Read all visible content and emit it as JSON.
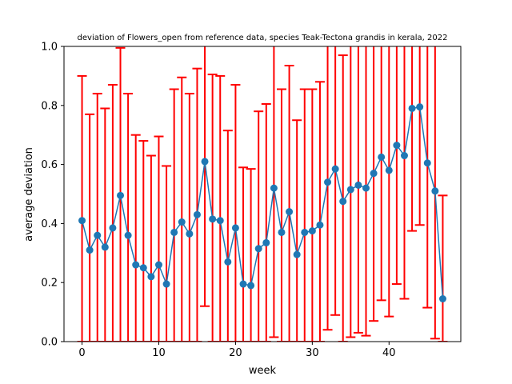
{
  "chart_data": {
    "type": "line",
    "title": "deviation of Flowers_open from reference data, species Teak-Tectona grandis in kerala, 2022",
    "xlabel": "week",
    "ylabel": "average deviation",
    "xlim": [
      -2.35,
      49.35
    ],
    "ylim": [
      0.0,
      1.0
    ],
    "xticks": [
      0,
      10,
      20,
      30,
      40
    ],
    "yticks": [
      "0.0",
      "0.2",
      "0.4",
      "0.6",
      "0.8",
      "1.0"
    ],
    "grid": false,
    "legend": "none",
    "series": [
      {
        "x": [
          0,
          1,
          2,
          3,
          4,
          5,
          6,
          7,
          8,
          9,
          10,
          11,
          12,
          13,
          14,
          15,
          16,
          17,
          18,
          19,
          20,
          21,
          22,
          23,
          24,
          25,
          26,
          27,
          28,
          29,
          30,
          31,
          32,
          33,
          34,
          35,
          36,
          37,
          38,
          39,
          40,
          41,
          42,
          43,
          44,
          45,
          46,
          47
        ],
        "y": [
          0.41,
          0.31,
          0.36,
          0.32,
          0.385,
          0.495,
          0.36,
          0.26,
          0.25,
          0.22,
          0.26,
          0.195,
          0.37,
          0.405,
          0.365,
          0.43,
          0.61,
          0.415,
          0.41,
          0.27,
          0.385,
          0.195,
          0.19,
          0.315,
          0.335,
          0.52,
          0.37,
          0.44,
          0.295,
          0.37,
          0.375,
          0.395,
          0.54,
          0.585,
          0.475,
          0.515,
          0.53,
          0.52,
          0.57,
          0.625,
          0.58,
          0.665,
          0.63,
          0.79,
          0.795,
          0.605,
          0.51,
          0.145
        ],
        "err_low": [
          0.0,
          0.0,
          0.0,
          0.0,
          0.0,
          0.0,
          0.0,
          0.0,
          0.0,
          0.0,
          0.0,
          0.0,
          0.0,
          0.0,
          0.0,
          0.0,
          0.12,
          0.0,
          0.0,
          0.0,
          0.0,
          0.0,
          0.0,
          0.0,
          0.0,
          0.015,
          0.0,
          0.0,
          0.0,
          0.0,
          0.0,
          0.0,
          0.04,
          0.09,
          0.0,
          0.015,
          0.03,
          0.02,
          0.07,
          0.14,
          0.085,
          0.195,
          0.145,
          0.375,
          0.395,
          0.115,
          0.01,
          0.0
        ],
        "err_high": [
          0.9,
          0.77,
          0.84,
          0.79,
          0.87,
          0.995,
          0.84,
          0.7,
          0.68,
          0.63,
          0.695,
          0.595,
          0.855,
          0.895,
          0.84,
          0.925,
          1.1,
          0.905,
          0.9,
          0.715,
          0.87,
          0.59,
          0.585,
          0.78,
          0.805,
          1.1,
          0.855,
          0.935,
          0.75,
          0.855,
          0.855,
          0.88,
          1.1,
          1.1,
          0.97,
          1.1,
          1.1,
          1.1,
          1.1,
          1.1,
          1.1,
          1.1,
          1.1,
          1.1,
          1.1,
          1.1,
          1.1,
          0.495
        ],
        "line_color": "#1f77b4",
        "marker_color": "#1f77b4",
        "errorbar_color": "#ff0000"
      }
    ]
  }
}
